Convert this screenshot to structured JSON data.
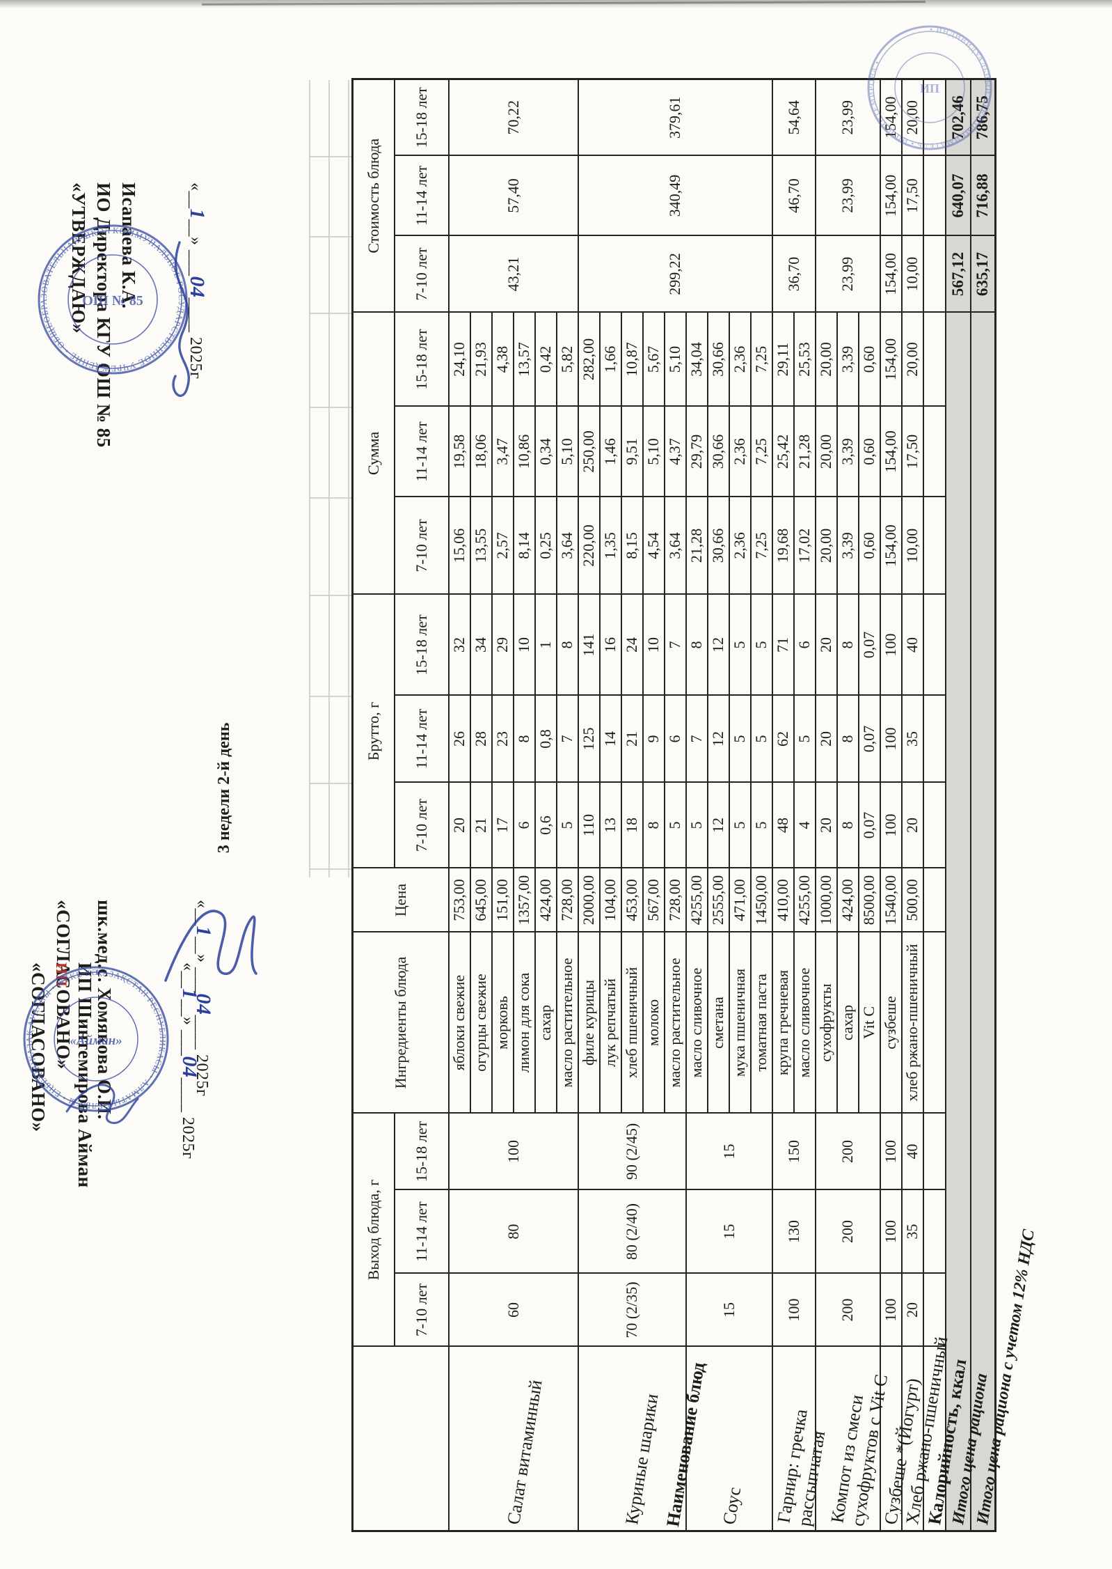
{
  "document": {
    "sheet_title": "3 недели 2-й день",
    "paper": "#fcfbf7",
    "ink": "#1d1c1a",
    "grid_color": "#26241f",
    "totals_fill": "#d8d7d3",
    "stamp_blue": "#3a4fa4",
    "accent_red": "#b5342c"
  },
  "blocks": {
    "agreed_ip": {
      "title": "«СОГЛАСОВАНО»",
      "line2": "ИП",
      "line3": "ИП Шинтемирова Айман",
      "date": {
        "pre": "«__",
        "day": "1",
        "mid": "__» ___",
        "month": "04",
        "post": "____ 2025г"
      }
    },
    "agreed_med": {
      "title": "«СОГЛАСОВАНО»",
      "line2": "шк.мед.с. Хомякова О.И.",
      "date": {
        "pre": "«__",
        "day": "1",
        "mid": "__» ___",
        "month": "04",
        "post": "____ 2025г"
      }
    },
    "approved": {
      "title": "«УТВЕРЖДАЮ»",
      "line2": "ИО Директора КГУ ОШ № 85",
      "line3": "Исапаева К.А.",
      "date": {
        "pre": "«__",
        "day": "1",
        "mid": "__» ___",
        "month": "04",
        "post": "____ 2025г"
      }
    }
  },
  "table": {
    "headers": {
      "name": "Наименование блюд",
      "yield": "Выход блюда, г",
      "ingredients": "Ингредиенты блюда",
      "price": "Цена",
      "brutto": "Брутто, г",
      "summa": "Сумма",
      "cost": "Стоимость блюда"
    },
    "age_labels": [
      "7-10 лет",
      "11-14 лет",
      "15-18 лет"
    ],
    "dishes": [
      {
        "name_lines": [
          "Салат витаминный"
        ],
        "yield": [
          "60",
          "80",
          "100"
        ],
        "cost": [
          "43,21",
          "57,40",
          "70,22"
        ],
        "cost_rowspan": 6,
        "ingredients": [
          {
            "name": "яблоки свежие",
            "price": "753,00",
            "brutto": [
              "20",
              "26",
              "32"
            ],
            "summa": [
              "15,06",
              "19,58",
              "24,10"
            ]
          },
          {
            "name": "огурцы свежие",
            "price": "645,00",
            "brutto": [
              "21",
              "28",
              "34"
            ],
            "summa": [
              "13,55",
              "18,06",
              "21,93"
            ]
          },
          {
            "name": "морковь",
            "price": "151,00",
            "brutto": [
              "17",
              "23",
              "29"
            ],
            "summa": [
              "2,57",
              "3,47",
              "4,38"
            ]
          },
          {
            "name": "лимон для сока",
            "price": "1357,00",
            "brutto": [
              "6",
              "8",
              "10"
            ],
            "summa": [
              "8,14",
              "10,86",
              "13,57"
            ]
          },
          {
            "name": "сахар",
            "price": "424,00",
            "brutto": [
              "0,6",
              "0,8",
              "1"
            ],
            "summa": [
              "0,25",
              "0,34",
              "0,42"
            ]
          },
          {
            "name": "масло растительное",
            "price": "728,00",
            "brutto": [
              "5",
              "7",
              "8"
            ],
            "summa": [
              "3,64",
              "5,10",
              "5,82"
            ]
          }
        ]
      },
      {
        "name_lines": [
          "Куриные шарики"
        ],
        "yield": [
          "70 (2/35)",
          "80 (2/40)",
          "90 (2/45)"
        ],
        "cost": [
          "299,22",
          "340,49",
          "379,61"
        ],
        "cost_rowspan": 9,
        "ingredients": [
          {
            "name": "филе курицы",
            "price": "2000,00",
            "brutto": [
              "110",
              "125",
              "141"
            ],
            "summa": [
              "220,00",
              "250,00",
              "282,00"
            ]
          },
          {
            "name": "лук репчатый",
            "price": "104,00",
            "brutto": [
              "13",
              "14",
              "16"
            ],
            "summa": [
              "1,35",
              "1,46",
              "1,66"
            ]
          },
          {
            "name": "хлеб пшеничный",
            "price": "453,00",
            "brutto": [
              "18",
              "21",
              "24"
            ],
            "summa": [
              "8,15",
              "9,51",
              "10,87"
            ]
          },
          {
            "name": "молоко",
            "price": "567,00",
            "brutto": [
              "8",
              "9",
              "10"
            ],
            "summa": [
              "4,54",
              "5,10",
              "5,67"
            ]
          },
          {
            "name": "масло растительное",
            "price": "728,00",
            "brutto": [
              "5",
              "6",
              "7"
            ],
            "summa": [
              "3,64",
              "4,37",
              "5,10"
            ]
          }
        ]
      },
      {
        "name_lines": [
          "Соус"
        ],
        "yield": [
          "15",
          "15",
          "15"
        ],
        "cost": null,
        "cost_rowspan": 0,
        "ingredients": [
          {
            "name": "масло сливочное",
            "price": "4255,00",
            "brutto": [
              "5",
              "7",
              "8"
            ],
            "summa": [
              "21,28",
              "29,79",
              "34,04"
            ]
          },
          {
            "name": "сметана",
            "price": "2555,00",
            "brutto": [
              "12",
              "12",
              "12"
            ],
            "summa": [
              "30,66",
              "30,66",
              "30,66"
            ]
          },
          {
            "name": "мука пшеничная",
            "price": "471,00",
            "brutto": [
              "5",
              "5",
              "5"
            ],
            "summa": [
              "2,36",
              "2,36",
              "2,36"
            ]
          },
          {
            "name": "томатная паста",
            "price": "1450,00",
            "brutto": [
              "5",
              "5",
              "5"
            ],
            "summa": [
              "7,25",
              "7,25",
              "7,25"
            ]
          }
        ]
      },
      {
        "name_lines": [
          "Гарнир: гречка",
          "рассыпчатая"
        ],
        "yield": [
          "100",
          "130",
          "150"
        ],
        "cost": [
          "36,70",
          "46,70",
          "54,64"
        ],
        "cost_rowspan": 2,
        "ingredients": [
          {
            "name": "крупа гречневая",
            "price": "410,00",
            "brutto": [
              "48",
              "62",
              "71"
            ],
            "summa": [
              "19,68",
              "25,42",
              "29,11"
            ]
          },
          {
            "name": "масло сливочное",
            "price": "4255,00",
            "brutto": [
              "4",
              "5",
              "6"
            ],
            "summa": [
              "17,02",
              "21,28",
              "25,53"
            ]
          }
        ]
      },
      {
        "name_lines": [
          "Компот из смеси",
          "сухофруктов с Vit C"
        ],
        "yield": [
          "200",
          "200",
          "200"
        ],
        "cost": [
          "23,99",
          "23,99",
          "23,99"
        ],
        "cost_rowspan": 3,
        "ingredients": [
          {
            "name": "сухофрукты",
            "price": "1000,00",
            "brutto": [
              "20",
              "20",
              "20"
            ],
            "summa": [
              "20,00",
              "20,00",
              "20,00"
            ]
          },
          {
            "name": "сахар",
            "price": "424,00",
            "brutto": [
              "8",
              "8",
              "8"
            ],
            "summa": [
              "3,39",
              "3,39",
              "3,39"
            ]
          },
          {
            "name": "Vit C",
            "price": "8500,00",
            "brutto": [
              "0,07",
              "0,07",
              "0,07"
            ],
            "summa": [
              "0,60",
              "0,60",
              "0,60"
            ]
          }
        ]
      },
      {
        "name_lines": [
          "Сузбеше *(Йогурт)"
        ],
        "yield": [
          "100",
          "100",
          "100"
        ],
        "cost": [
          "154,00",
          "154,00",
          "154,00"
        ],
        "cost_rowspan": 1,
        "ingredients": [
          {
            "name": "сузбеше",
            "price": "1540,00",
            "brutto": [
              "100",
              "100",
              "100"
            ],
            "summa": [
              "154,00",
              "154,00",
              "154,00"
            ]
          }
        ]
      },
      {
        "name_lines": [
          "Хлеб ржано-пшеничный"
        ],
        "yield": [
          "20",
          "35",
          "40"
        ],
        "cost": [
          "10,00",
          "17,50",
          "20,00"
        ],
        "cost_rowspan": 1,
        "ingredients": [
          {
            "name": "хлеб ржано-пшеничный",
            "price": "500,00",
            "brutto": [
              "20",
              "35",
              "40"
            ],
            "summa": [
              "10,00",
              "17,50",
              "20,00"
            ]
          }
        ]
      }
    ],
    "kcal_label": "Калорийность, ккал",
    "totals": [
      {
        "label": "Итого цена рациона",
        "values": [
          "567,12",
          "640,07",
          "702,46"
        ]
      },
      {
        "label": "Итого цена рациона с учетом 12% НДС",
        "values": [
          "635,17",
          "716,88",
          "786,75"
        ]
      }
    ]
  },
  "stamps": {
    "school": {
      "ring_text": "КОММУНАЛЬНОЕ ГОСУДАРСТВЕННОЕ УЧРЕЖДЕНИЕ • ОБЩЕОБРАЗОВАТЕЛЬНАЯ ШКОЛА № 85 •",
      "inner_text": "ОШ № 85"
    },
    "ip": {
      "ring_text": "ҚАЗАҚСТАН РЕСПУБЛИКАСЫ • АЛМАТЫ ОБЛЫСЫ • ЕҢБЕКШІҚАЗАҚ АУДАНЫ • ЖЕКЕ КӘСІПКЕР •",
      "inner_text": "«Айман»"
    },
    "corner": {
      "ring_text": "• ИНДИВИДУАЛЬНЫЙ ПРЕДПРИНИМАТЕЛЬ • ИП ШИНТЕМИРОВА •",
      "inner_text": "ИП"
    }
  }
}
